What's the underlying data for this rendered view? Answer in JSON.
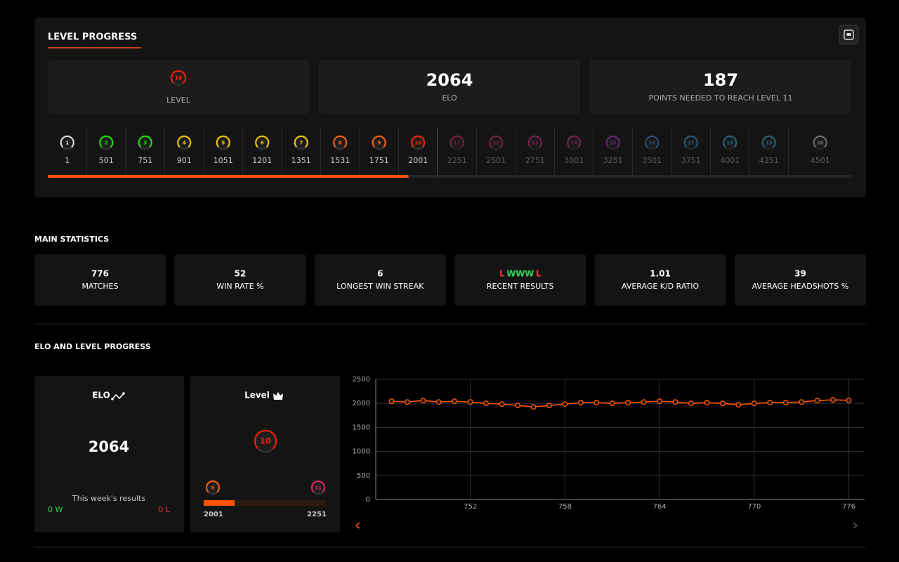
{
  "header": {
    "title": "LEVEL PROGRESS"
  },
  "summary": {
    "level": {
      "value": 10,
      "label": "LEVEL"
    },
    "elo": {
      "value": 2064,
      "label": "ELO"
    },
    "points_needed": {
      "value": 187,
      "label": "POINTS NEEDED TO REACH LEVEL 11"
    }
  },
  "levels": [
    {
      "level": 1,
      "min_elo": 1,
      "color": "#dddddd"
    },
    {
      "level": 2,
      "min_elo": 501,
      "color": "#1ce400"
    },
    {
      "level": 3,
      "min_elo": 751,
      "color": "#1ce400"
    },
    {
      "level": 4,
      "min_elo": 901,
      "color": "#ffc800"
    },
    {
      "level": 5,
      "min_elo": 1051,
      "color": "#ffc800"
    },
    {
      "level": 6,
      "min_elo": 1201,
      "color": "#ffc800"
    },
    {
      "level": 7,
      "min_elo": 1351,
      "color": "#ffc800"
    },
    {
      "level": 8,
      "min_elo": 1531,
      "color": "#ff6309"
    },
    {
      "level": 9,
      "min_elo": 1751,
      "color": "#ff6309"
    },
    {
      "level": 10,
      "min_elo": 2001,
      "color": "#fe1f00"
    },
    {
      "level": 11,
      "min_elo": 2251,
      "color": "#e0245e"
    },
    {
      "level": 12,
      "min_elo": 2501,
      "color": "#e0245e"
    },
    {
      "level": 13,
      "min_elo": 2751,
      "color": "#e0247a"
    },
    {
      "level": 14,
      "min_elo": 3001,
      "color": "#e0247a"
    },
    {
      "level": 15,
      "min_elo": 3251,
      "color": "#b52bd8"
    },
    {
      "level": 16,
      "min_elo": 3501,
      "color": "#3f7fe0"
    },
    {
      "level": 17,
      "min_elo": 3751,
      "color": "#2a9ee0"
    },
    {
      "level": 18,
      "min_elo": 4001,
      "color": "#2ab3e0"
    },
    {
      "level": 19,
      "min_elo": 4251,
      "color": "#2ab3e0"
    },
    {
      "level": 20,
      "min_elo": 4501,
      "color": "#cccccc"
    }
  ],
  "main_statistics": {
    "title": "MAIN STATISTICS",
    "items": [
      {
        "value": 776,
        "label": "MATCHES"
      },
      {
        "value": 52,
        "label": "WIN RATE %"
      },
      {
        "value": 6,
        "label": "LONGEST WIN STREAK"
      },
      {
        "results": [
          "L",
          "W",
          "W",
          "W",
          "L"
        ],
        "label": "RECENT RESULTS"
      },
      {
        "value": 1.01,
        "label": "AVERAGE K/D RATIO"
      },
      {
        "value": 39,
        "label": "AVERAGE HEADSHOTS %"
      }
    ],
    "result_colors": {
      "W": "#32d35a",
      "L": "#ff2d3b"
    }
  },
  "elo_and_level_progress": {
    "title": "ELO AND LEVEL PROGRESS",
    "elo_card": {
      "title": "ELO",
      "value": 2064,
      "week_label": "This week's results",
      "wins": "0 W",
      "losses": "0 L"
    },
    "level_card": {
      "title": "Level",
      "level": 10,
      "from_level": 9,
      "to_level": 11,
      "from_elo": 2001,
      "to_elo": 2251
    }
  },
  "chart_data": {
    "type": "line",
    "color": "#ff5500",
    "x": [
      747,
      748,
      749,
      750,
      751,
      752,
      753,
      754,
      755,
      756,
      757,
      758,
      759,
      760,
      761,
      762,
      763,
      764,
      765,
      766,
      767,
      768,
      769,
      770,
      771,
      772,
      773,
      774,
      775,
      776
    ],
    "values": [
      2044,
      2029,
      2058,
      2029,
      2044,
      2029,
      2000,
      1985,
      1956,
      1927,
      1956,
      1985,
      2015,
      2015,
      2000,
      2015,
      2029,
      2044,
      2029,
      2000,
      2015,
      2000,
      1971,
      2000,
      2015,
      2015,
      2029,
      2058,
      2073,
      2064
    ],
    "xlim": [
      746,
      777
    ],
    "xticks": [
      752,
      758,
      764,
      770,
      776
    ],
    "ylim": [
      0,
      2500
    ],
    "yticks": [
      0,
      500,
      1000,
      1500,
      2000,
      2500
    ],
    "grid": true
  }
}
